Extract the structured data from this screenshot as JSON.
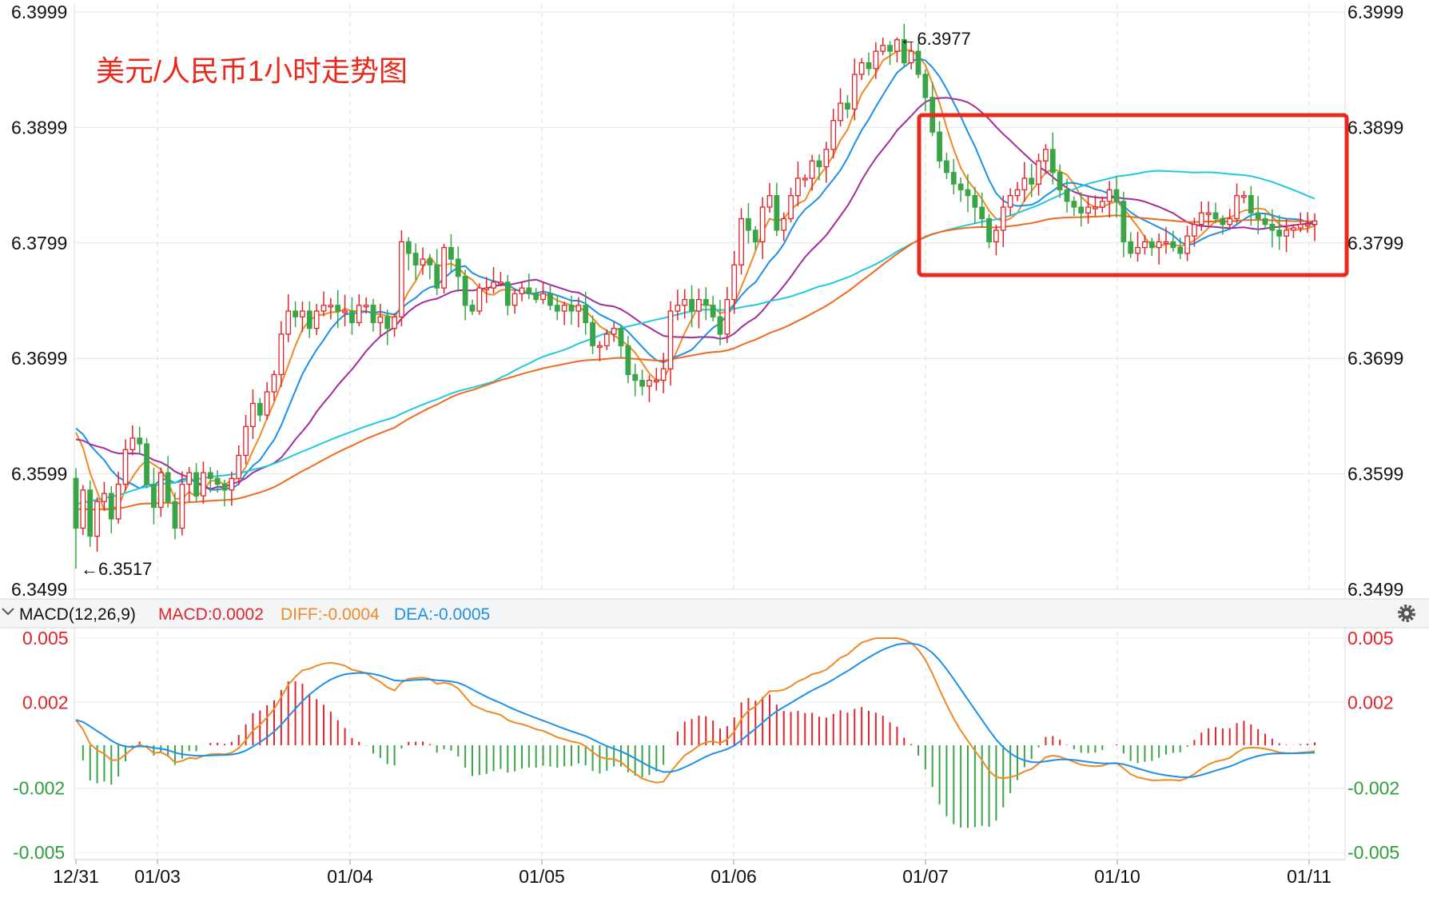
{
  "chart_data": [
    {
      "type": "candlestick",
      "title": "美元/人民币1小时走势图",
      "y_ticks": [
        "6.3999",
        "6.3899",
        "6.3799",
        "6.3699",
        "6.3599",
        "6.3499"
      ],
      "ylim": [
        6.3499,
        6.3999
      ],
      "x_ticks": [
        "12/31",
        "01/03",
        "01/04",
        "01/05",
        "01/06",
        "01/07",
        "01/10",
        "01/11"
      ],
      "grid": true,
      "annotations": {
        "high": {
          "label": "←6.3977",
          "value": 6.3977
        },
        "low": {
          "label": "←6.3517",
          "value": 6.3517
        }
      },
      "colors": {
        "up": "#e0242a",
        "down": "#3aa546",
        "ma1": "#f08a24",
        "ma2": "#1e90e8",
        "ma3": "#a62c9b",
        "ma4": "#22c9d9",
        "ma5": "#f06a1f",
        "highlight_box": "#e8291c"
      },
      "close": [
        6.3552,
        6.3585,
        6.3545,
        6.3575,
        6.3582,
        6.356,
        6.359,
        6.362,
        6.363,
        6.3625,
        6.359,
        6.357,
        6.36,
        6.3575,
        6.3552,
        6.359,
        6.36,
        6.358,
        6.36,
        6.3595,
        6.359,
        6.3585,
        6.3595,
        6.3615,
        6.364,
        6.366,
        6.365,
        6.367,
        6.3685,
        6.372,
        6.374,
        6.3735,
        6.374,
        6.3725,
        6.374,
        6.3745,
        6.3745,
        6.374,
        6.374,
        6.373,
        6.3745,
        6.3745,
        6.373,
        6.3735,
        6.3725,
        6.3735,
        6.38,
        6.379,
        6.378,
        6.3785,
        6.378,
        6.376,
        6.3795,
        6.3785,
        6.377,
        6.3745,
        6.374,
        6.376,
        6.376,
        6.3765,
        6.3765,
        6.3745,
        6.3755,
        6.376,
        6.3755,
        6.375,
        6.3755,
        6.3745,
        6.374,
        6.3745,
        6.374,
        6.3745,
        6.373,
        6.371,
        6.371,
        6.372,
        6.3725,
        6.371,
        6.3685,
        6.368,
        6.3675,
        6.368,
        6.368,
        6.369,
        6.374,
        6.3745,
        6.375,
        6.374,
        6.375,
        6.3745,
        6.3735,
        6.372,
        6.375,
        6.378,
        6.382,
        6.381,
        6.38,
        6.383,
        6.384,
        6.381,
        6.382,
        6.384,
        6.3855,
        6.3855,
        6.387,
        6.3865,
        6.388,
        6.3905,
        6.392,
        6.3915,
        6.3945,
        6.3955,
        6.395,
        6.3965,
        6.397,
        6.3965,
        6.3975,
        6.3955,
        6.3965,
        6.3945,
        6.3925,
        6.3895,
        6.387,
        6.386,
        6.385,
        6.3845,
        6.384,
        6.383,
        6.382,
        6.38,
        6.381,
        6.383,
        6.384,
        6.3845,
        6.3855,
        6.385,
        6.387,
        6.388,
        6.386,
        6.3845,
        6.3835,
        6.383,
        6.3825,
        6.383,
        6.383,
        6.3835,
        6.3845,
        6.3835,
        6.38,
        6.379,
        6.3795,
        6.38,
        6.3795,
        6.38,
        6.38,
        6.3795,
        6.379,
        6.3805,
        6.3815,
        6.3825,
        6.3825,
        6.382,
        6.3815,
        6.382,
        6.384,
        6.384,
        6.3825,
        6.382,
        6.3815,
        6.381,
        6.3805,
        6.381,
        6.3812,
        6.3815,
        6.3815,
        6.3818
      ],
      "oscillator": {
        "type": "MACD",
        "header": {
          "name": "MACD(12,26,9)",
          "macd": "MACD:0.0002",
          "diff": "DIFF:-0.0004",
          "dea": "DEA:-0.0005"
        },
        "y_ticks": [
          "0.005",
          "0.002",
          "-0.002",
          "-0.005"
        ],
        "ylim": [
          -0.005,
          0.005
        ],
        "colors": {
          "diff": "#f08a24",
          "dea": "#1e90e8",
          "pos": "#e0242a",
          "neg": "#3aa546",
          "header_macd": "#e0242a",
          "header_diff": "#f08a24",
          "header_dea": "#1e90e8"
        }
      }
    }
  ]
}
